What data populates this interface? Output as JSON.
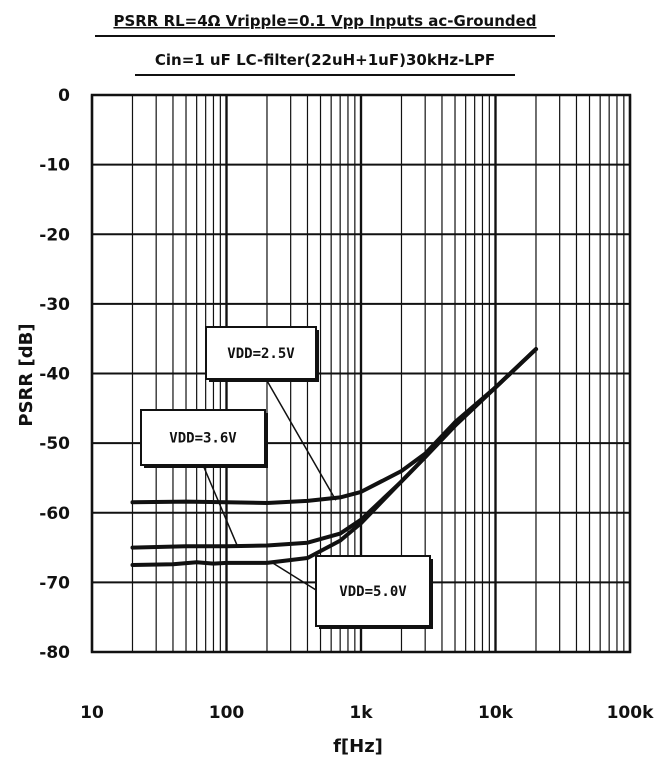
{
  "chart_data": {
    "type": "line",
    "title": "PSRR RL=4Ω Vripple=0.1 Vpp Inputs ac-Grounded",
    "subtitle": "Cin=1 uF LC-filter(22uH+1uF)30kHz-LPF",
    "xlabel": "f[Hz]",
    "ylabel": "PSRR [dB]",
    "xscale": "log",
    "xlim": [
      10,
      100000
    ],
    "ylim": [
      -80,
      0
    ],
    "grid": true,
    "x_ticks": [
      "10",
      "100",
      "1k",
      "10k",
      "100k"
    ],
    "y_ticks": [
      "0",
      "-10",
      "-20",
      "-30",
      "-40",
      "-50",
      "-60",
      "-70",
      "-80"
    ],
    "y_tick_values": [
      0,
      -10,
      -20,
      -30,
      -40,
      -50,
      -60,
      -70,
      -80
    ],
    "series": [
      {
        "name": "VDD=2.5V",
        "x": [
          20,
          50,
          100,
          200,
          400,
          700,
          1000,
          2000,
          3000,
          5000,
          10000,
          20000
        ],
        "y": [
          -58.5,
          -58.4,
          -58.5,
          -58.6,
          -58.3,
          -57.8,
          -57,
          -54,
          -51.5,
          -47,
          -42,
          -36.5
        ]
      },
      {
        "name": "VDD=3.6V",
        "x": [
          20,
          50,
          100,
          200,
          400,
          700,
          1000,
          2000,
          3000,
          5000,
          10000,
          20000
        ],
        "y": [
          -65,
          -64.8,
          -64.8,
          -64.7,
          -64.3,
          -63,
          -61,
          -55.5,
          -52,
          -47.5,
          -42,
          -36.5
        ]
      },
      {
        "name": "VDD=5.0V",
        "x": [
          20,
          40,
          60,
          80,
          100,
          200,
          400,
          700,
          1000,
          2000,
          3000,
          5000,
          10000,
          20000
        ],
        "y": [
          -67.5,
          -67.4,
          -67.1,
          -67.3,
          -67.2,
          -67.2,
          -66.5,
          -64,
          -61.5,
          -55.5,
          -52,
          -47.5,
          -42,
          -36.5
        ]
      }
    ],
    "annotations": [
      "VDD=2.5V",
      "VDD=3.6V",
      "VDD=5.0V"
    ]
  }
}
